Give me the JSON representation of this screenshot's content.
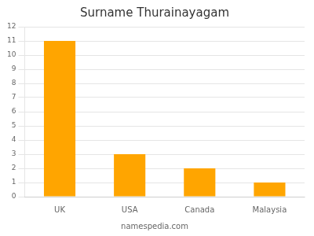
{
  "chart_data": {
    "type": "bar",
    "title": "Surname Thurainayagam",
    "annotations": [
      "namespedia.com"
    ],
    "categories": [
      "UK",
      "USA",
      "Canada",
      "Malaysia"
    ],
    "values": [
      11,
      3,
      2,
      1
    ],
    "color": "#FFA500",
    "ylim": [
      0,
      12
    ],
    "yticks": [
      0,
      1,
      2,
      3,
      4,
      5,
      6,
      7,
      8,
      9,
      10,
      11,
      12
    ],
    "grid": true
  }
}
